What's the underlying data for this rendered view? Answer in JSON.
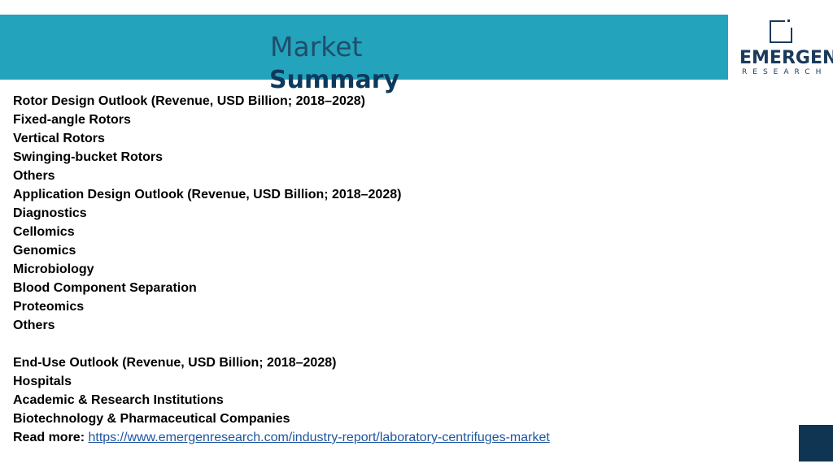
{
  "header": {
    "title_line1": "Market",
    "title_line2": "Summary"
  },
  "logo": {
    "name": "EMERGEN",
    "sub": "RESEARCH",
    "icon": "square-frame-icon",
    "color": "#1a3a5c"
  },
  "colors": {
    "header_band": "#24a3bd",
    "title": "#0d3a5c",
    "link": "#1e56a0",
    "corner_box": "#0f3553"
  },
  "sections": [
    {
      "heading": "Rotor Design Outlook (Revenue, USD Billion; 2018–2028)",
      "items": [
        "Fixed-angle Rotors",
        "Vertical Rotors",
        "Swinging-bucket Rotors",
        "Others"
      ]
    },
    {
      "heading": "Application Design Outlook (Revenue, USD Billion; 2018–2028)",
      "items": [
        "Diagnostics",
        "Cellomics",
        "Genomics",
        "Microbiology",
        "Blood Component Separation",
        "Proteomics",
        "Others"
      ]
    },
    {
      "heading": "End-Use Outlook (Revenue, USD Billion; 2018–2028)",
      "items": [
        "Hospitals",
        "Academic & Research Institutions",
        "Biotechnology & Pharmaceutical Companies"
      ]
    }
  ],
  "read_more": {
    "label": "Read more:",
    "url": "https://www.emergenresearch.com/industry-report/laboratory-centrifuges-market"
  }
}
